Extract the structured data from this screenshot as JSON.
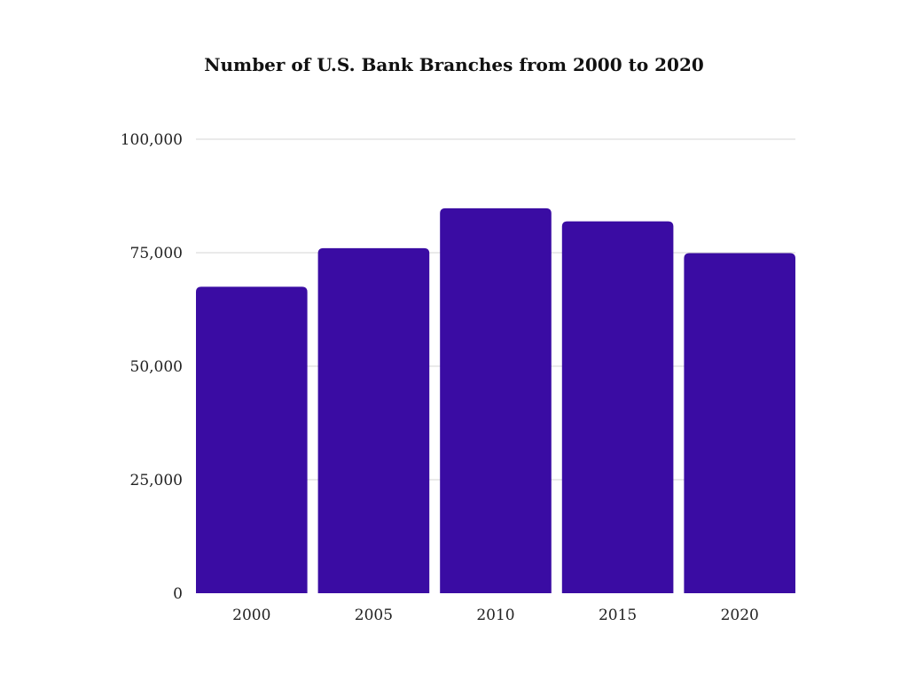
{
  "chart_data": {
    "type": "bar",
    "title": "Number of U.S. Bank Branches from 2000 to 2020",
    "categories": [
      "2000",
      "2005",
      "2010",
      "2015",
      "2020"
    ],
    "values": [
      67500,
      76000,
      84800,
      81900,
      74900
    ],
    "ylim": [
      0,
      100000
    ],
    "yticks": [
      0,
      25000,
      50000,
      75000,
      100000
    ],
    "ytick_labels": [
      "0",
      "25,000",
      "50,000",
      "75,000",
      "100,000"
    ],
    "grid": true,
    "legend": "none",
    "bar_color": "#3a0ca3",
    "grid_color": "#d6d6d6"
  }
}
